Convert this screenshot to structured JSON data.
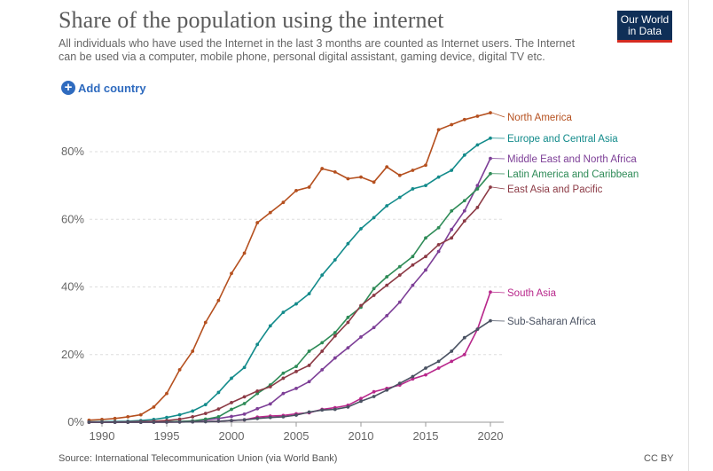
{
  "header": {
    "title": "Share of the population using the internet",
    "subtitle": "All individuals who have used the Internet in the last 3 months are counted as Internet users. The Internet can be used via a computer, mobile phone, personal digital assistant, gaming device, digital TV etc.",
    "logo_line1": "Our World",
    "logo_line2": "in Data",
    "add_country_label": "Add country",
    "add_icon": "plus-circle-icon"
  },
  "footer": {
    "source": "Source: International Telecommunication Union (via World Bank)",
    "license": "CC BY"
  },
  "chart_data": {
    "type": "line",
    "title": "Share of the population using the internet",
    "xlabel": "",
    "ylabel": "",
    "xlim": [
      1989,
      2021
    ],
    "ylim": [
      0,
      92
    ],
    "y_ticks": [
      0,
      20,
      40,
      60,
      80
    ],
    "y_tick_labels": [
      "0%",
      "20%",
      "40%",
      "60%",
      "80%"
    ],
    "x_ticks": [
      1990,
      1995,
      2000,
      2005,
      2010,
      2015,
      2020
    ],
    "x_tick_labels": [
      "1990",
      "1995",
      "2000",
      "2005",
      "2010",
      "2015",
      "2020"
    ],
    "grid": "horizontal dashed",
    "legend": "line-end labels",
    "x": [
      1989,
      1990,
      1991,
      1992,
      1993,
      1994,
      1995,
      1996,
      1997,
      1998,
      1999,
      2000,
      2001,
      2002,
      2003,
      2004,
      2005,
      2006,
      2007,
      2008,
      2009,
      2010,
      2011,
      2012,
      2013,
      2014,
      2015,
      2016,
      2017,
      2018,
      2019,
      2020
    ],
    "series": [
      {
        "name": "North America",
        "color": "#b5501f",
        "values": [
          0.6,
          0.8,
          1.1,
          1.6,
          2.2,
          4.5,
          8.5,
          15.5,
          21,
          29.5,
          36,
          44,
          50,
          59,
          62,
          65,
          68.5,
          69.5,
          75,
          74,
          72,
          72.5,
          71,
          75.5,
          73,
          74.5,
          76,
          86.5,
          88,
          89.5,
          90.5,
          91.5
        ]
      },
      {
        "name": "Europe and Central Asia",
        "color": "#138b8b",
        "values": [
          0.1,
          0.15,
          0.2,
          0.3,
          0.5,
          0.8,
          1.4,
          2.2,
          3.3,
          5.2,
          8.8,
          13,
          16.2,
          23,
          28.5,
          32.5,
          35,
          38,
          43.5,
          48,
          52.8,
          57.2,
          60.5,
          64,
          66.5,
          69,
          70,
          72.5,
          74.5,
          79,
          82,
          84
        ]
      },
      {
        "name": "Middle East and North Africa",
        "color": "#7d3f97",
        "values": [
          0,
          0,
          0,
          0,
          0,
          0.05,
          0.1,
          0.2,
          0.4,
          0.7,
          1.1,
          1.7,
          2.4,
          4,
          5.4,
          8.5,
          10,
          12,
          15.5,
          19,
          22,
          25.2,
          28,
          31.5,
          35.5,
          40.5,
          45,
          50.5,
          57,
          62.5,
          70,
          78
        ]
      },
      {
        "name": "Latin America and Caribbean",
        "color": "#2e8b57",
        "values": [
          0,
          0,
          0,
          0,
          0,
          0.05,
          0.1,
          0.2,
          0.4,
          0.9,
          1.6,
          3.8,
          5.5,
          8.5,
          11,
          14.5,
          16.5,
          21,
          23.5,
          26.5,
          31,
          34,
          39.5,
          43,
          46,
          49,
          54.5,
          57.5,
          62.5,
          65.5,
          69,
          73.5
        ]
      },
      {
        "name": "East Asia and Pacific",
        "color": "#8c3a45",
        "values": [
          0,
          0,
          0.05,
          0.1,
          0.2,
          0.3,
          0.5,
          0.9,
          1.6,
          2.6,
          3.9,
          5.8,
          7.5,
          9.2,
          10.5,
          13,
          15,
          16.8,
          21,
          25.5,
          29.5,
          34.5,
          37.5,
          40.5,
          43.5,
          46.5,
          49,
          52.5,
          54.5,
          59.5,
          63.5,
          69.5
        ]
      },
      {
        "name": "South Asia",
        "color": "#b8278b",
        "values": [
          0,
          0,
          0,
          0,
          0,
          0,
          0.02,
          0.05,
          0.1,
          0.2,
          0.3,
          0.5,
          0.7,
          1.5,
          1.8,
          2,
          2.5,
          2.8,
          3.8,
          4.3,
          5,
          7,
          9,
          10,
          11,
          12.8,
          14,
          16,
          18,
          20,
          27.5,
          38.5
        ]
      },
      {
        "name": "Sub-Saharan Africa",
        "color": "#4a5262",
        "values": [
          0,
          0,
          0,
          0,
          0,
          0,
          0.02,
          0.05,
          0.1,
          0.15,
          0.3,
          0.5,
          0.7,
          1.1,
          1.4,
          1.6,
          2.1,
          3,
          3.6,
          3.8,
          4.5,
          6.2,
          7.6,
          9.5,
          11.5,
          13.5,
          16,
          18,
          21,
          25,
          27.5,
          30
        ]
      }
    ]
  }
}
